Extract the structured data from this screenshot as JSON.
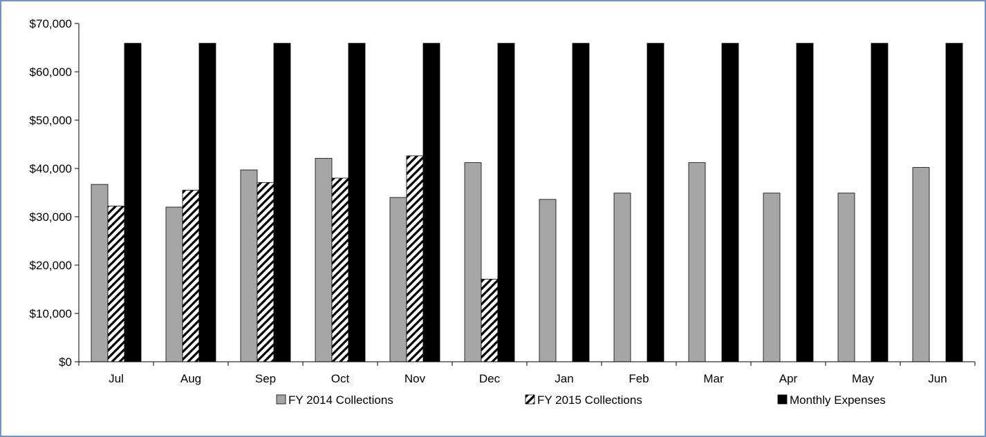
{
  "colors": {
    "fy2014": "#a6a6a6",
    "fy2015_pattern": "diagonal-hatch-black-on-white",
    "expenses": "#000000",
    "frame_border": "#6f93c8"
  },
  "chart_data": {
    "type": "bar",
    "title": "",
    "xlabel": "",
    "ylabel": "",
    "ylim": [
      0,
      70000
    ],
    "y_ticks": [
      0,
      10000,
      20000,
      30000,
      40000,
      50000,
      60000,
      70000
    ],
    "y_tick_labels": [
      "$0",
      "$10,000",
      "$20,000",
      "$30,000",
      "$40,000",
      "$50,000",
      "$60,000",
      "$70,000"
    ],
    "categories": [
      "Jul",
      "Aug",
      "Sep",
      "Oct",
      "Nov",
      "Dec",
      "Jan",
      "Feb",
      "Mar",
      "Apr",
      "May",
      "Jun"
    ],
    "series": [
      {
        "name": "FY 2014 Collections",
        "fill": "solid-gray",
        "values": [
          36700,
          32000,
          39700,
          42100,
          34000,
          41200,
          33600,
          34900,
          41200,
          34900,
          34900,
          40200
        ]
      },
      {
        "name": "FY 2015 Collections",
        "fill": "hatched",
        "values": [
          32200,
          35500,
          37100,
          38000,
          42600,
          17100,
          null,
          null,
          null,
          null,
          null,
          null
        ]
      },
      {
        "name": "Monthly Expenses",
        "fill": "solid-black",
        "values": [
          65900,
          65900,
          65900,
          65900,
          65900,
          65900,
          65900,
          65900,
          65900,
          65900,
          65900,
          65900
        ]
      }
    ],
    "legend_position": "bottom",
    "grid": false
  }
}
